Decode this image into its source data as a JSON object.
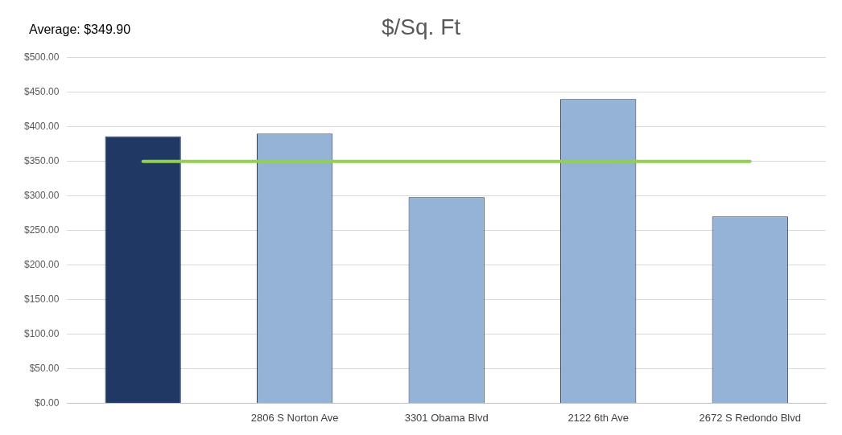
{
  "chart_data": {
    "type": "bar",
    "title": "$/Sq. Ft",
    "categories": [
      null,
      "2806 S Norton Ave",
      "3301 Obama Blvd",
      "2122 6th Ave",
      "2672 S Redondo Blvd"
    ],
    "values": [
      386,
      390,
      298,
      440,
      270
    ],
    "colors": [
      "#203864",
      "#95b3d7",
      "#95b3d7",
      "#95b3d7",
      "#95b3d7"
    ],
    "ylim": [
      0,
      500
    ],
    "yticks": [
      {
        "value": 0,
        "label": "$0.00"
      },
      {
        "value": 50,
        "label": "$50.00"
      },
      {
        "value": 100,
        "label": "$100.00"
      },
      {
        "value": 150,
        "label": "$150.00"
      },
      {
        "value": 200,
        "label": "$200.00"
      },
      {
        "value": 250,
        "label": "$250.00"
      },
      {
        "value": 300,
        "label": "$300.00"
      },
      {
        "value": 350,
        "label": "$350.00"
      },
      {
        "value": 400,
        "label": "$400.00"
      },
      {
        "value": 450,
        "label": "$450.00"
      },
      {
        "value": 500,
        "label": "$500.00"
      }
    ],
    "grid": "y",
    "legend": false,
    "annotations": [
      "Average: $349.90"
    ],
    "ref_lines": [
      {
        "axis": "y",
        "value": 349.9,
        "color": "#92d050"
      }
    ]
  }
}
